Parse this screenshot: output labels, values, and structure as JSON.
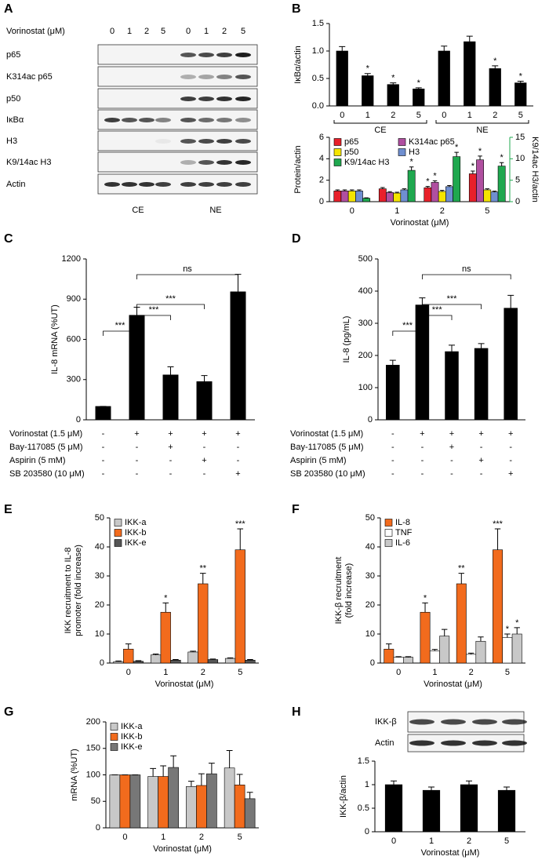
{
  "panel_labels": [
    "A",
    "B",
    "C",
    "D",
    "E",
    "F",
    "G",
    "H"
  ],
  "blot_a": {
    "treatment_label": "Vorinostat (μM)",
    "lanes": [
      "0",
      "1",
      "2",
      "5",
      "0",
      "1",
      "2",
      "5"
    ],
    "rows": [
      "p65",
      "K314ac p65",
      "p50",
      "IκBα",
      "H3",
      "K9/14ac H3",
      "Actin"
    ],
    "fractions": [
      "CE",
      "NE"
    ]
  },
  "blot_h": {
    "rows": [
      "IKK-β",
      "Actin"
    ]
  },
  "chart_data": [
    {
      "type": "bar",
      "ylabel": [
        "IκBα/actin"
      ],
      "categories": [
        "0",
        "1",
        "2",
        "5",
        "0",
        "1",
        "2",
        "5"
      ],
      "groups": [
        "CE",
        "NE"
      ],
      "values": [
        1.0,
        0.55,
        0.39,
        0.31,
        1.0,
        1.17,
        0.68,
        0.42
      ],
      "errors": [
        0.08,
        0.04,
        0.03,
        0.02,
        0.09,
        0.1,
        0.05,
        0.03
      ],
      "significance": [
        null,
        "*",
        "*",
        "*",
        null,
        null,
        "*",
        "*"
      ],
      "color": "#000000",
      "ylim": [
        0,
        1.5
      ],
      "yticks": [
        {
          "value": 0,
          "label": "0.0"
        },
        {
          "value": 0.5,
          "label": "0.5"
        },
        {
          "value": 1,
          "label": "1.0"
        },
        {
          "value": 1.5,
          "label": "1.5"
        }
      ]
    },
    {
      "type": "bar",
      "xlabel": "Vorinostat (μM)",
      "ylabel": [
        "Protein/actin"
      ],
      "y2label": [
        "K9/14ac H3/actin"
      ],
      "categories": [
        "0",
        "1",
        "2",
        "5"
      ],
      "series": [
        {
          "name": "p65",
          "color": "#e8202a",
          "values": [
            1,
            1.2,
            1.3,
            2.6
          ],
          "errors": [
            0.1,
            0.12,
            0.12,
            0.25
          ],
          "significance": [
            null,
            null,
            "*",
            "*"
          ]
        },
        {
          "name": "K314ac p65",
          "color": "#b04fa0",
          "values": [
            1,
            0.85,
            1.8,
            3.9
          ],
          "errors": [
            0.1,
            0.08,
            0.15,
            0.35
          ],
          "significance": [
            null,
            null,
            "*",
            "*"
          ]
        },
        {
          "name": "p50",
          "color": "#f5e500",
          "values": [
            1,
            0.8,
            0.95,
            1.1
          ],
          "errors": [
            0.1,
            0.08,
            0.1,
            0.1
          ]
        },
        {
          "name": "H3",
          "color": "#6f8fd0",
          "values": [
            1,
            1.1,
            1.4,
            0.9
          ],
          "errors": [
            0.1,
            0.1,
            0.1,
            0.08
          ]
        },
        {
          "name": "K9/14ac H3",
          "color": "#1fa84f",
          "axis": "y2",
          "values": [
            0.8,
            7.3,
            10.5,
            8.3
          ],
          "errors": [
            0.1,
            0.8,
            1.0,
            0.8
          ],
          "significance": [
            null,
            "*",
            "*",
            "*"
          ]
        }
      ],
      "ylim": [
        0,
        6
      ],
      "yticks": [
        0,
        2,
        4,
        6
      ],
      "y2lim": [
        0,
        15
      ],
      "y2ticks": [
        0,
        5,
        10,
        15
      ],
      "y2color": "#1fa84f",
      "legend": "upper left"
    },
    {
      "type": "bar",
      "ylabel": [
        "IL-8 mRNA (%UT)"
      ],
      "values": [
        100,
        780,
        335,
        285,
        955
      ],
      "errors": [
        0,
        60,
        60,
        45,
        130
      ],
      "color": "#000000",
      "ylim": [
        0,
        1200
      ],
      "yticks": [
        0,
        300,
        600,
        900,
        1200
      ],
      "comparisons": [
        "***",
        "***",
        "***",
        "ns"
      ],
      "conditions": [
        {
          "label": "Vorinostat (1.5 μM)",
          "marks": [
            "-",
            "+",
            "+",
            "+",
            "+"
          ]
        },
        {
          "label": "Bay-117085 (5 μM)",
          "marks": [
            "-",
            "-",
            "+",
            "-",
            "-"
          ]
        },
        {
          "label": "Aspirin (5 mM)",
          "marks": [
            "-",
            "-",
            "-",
            "+",
            "-"
          ]
        },
        {
          "label": "SB 203580 (10 μM)",
          "marks": [
            "-",
            "-",
            "-",
            "-",
            "+"
          ]
        }
      ]
    },
    {
      "type": "bar",
      "ylabel": [
        "IL-8 (pg/mL)"
      ],
      "values": [
        170,
        357,
        212,
        222,
        347
      ],
      "errors": [
        15,
        22,
        20,
        15,
        40
      ],
      "color": "#000000",
      "ylim": [
        0,
        500
      ],
      "yticks": [
        0,
        100,
        200,
        300,
        400,
        500
      ],
      "comparisons": [
        "***",
        "***",
        "***",
        "ns"
      ],
      "conditions": [
        {
          "label": "Vorinostat (1.5 μM)",
          "marks": [
            "-",
            "+",
            "+",
            "+",
            "+"
          ]
        },
        {
          "label": "Bay-117085 (5 μM)",
          "marks": [
            "-",
            "-",
            "+",
            "-",
            "-"
          ]
        },
        {
          "label": "Aspirin (5 mM)",
          "marks": [
            "-",
            "-",
            "-",
            "+",
            "-"
          ]
        },
        {
          "label": "SB 203580 (10 μM)",
          "marks": [
            "-",
            "-",
            "-",
            "-",
            "+"
          ]
        }
      ]
    },
    {
      "type": "bar",
      "xlabel": "Vorinostat (μM)",
      "ylabel": [
        "IKK recruitment to IL-8",
        "promoter (fold increase)"
      ],
      "categories": [
        "0",
        "1",
        "2",
        "5"
      ],
      "series": [
        {
          "name": "IKK-a",
          "color": "#c8c8c8",
          "values": [
            0.5,
            2.8,
            3.8,
            1.6
          ],
          "errors": [
            0.2,
            0.3,
            0.3,
            0.2
          ]
        },
        {
          "name": "IKK-b",
          "color": "#f26b1d",
          "values": [
            4.8,
            17.5,
            27.3,
            39
          ],
          "errors": [
            1.8,
            3.2,
            3.6,
            7.2
          ],
          "significance": [
            null,
            "*",
            "**",
            "***"
          ]
        },
        {
          "name": "IKK-e",
          "color": "#555555",
          "values": [
            0.6,
            1,
            1.2,
            1
          ],
          "errors": [
            0.2,
            0.2,
            0.2,
            0.2
          ]
        }
      ],
      "ylim": [
        0,
        50
      ],
      "yticks": [
        0,
        10,
        20,
        30,
        40,
        50
      ],
      "legend": "upper left"
    },
    {
      "type": "bar",
      "xlabel": "Vorinostat (μM)",
      "ylabel": [
        "IKK-β recruitment",
        "(fold increase)"
      ],
      "categories": [
        "0",
        "1",
        "2",
        "5"
      ],
      "series": [
        {
          "name": "IL-8",
          "color": "#f26b1d",
          "values": [
            4.8,
            17.5,
            27.3,
            39
          ],
          "errors": [
            1.8,
            3.2,
            3.6,
            7.2
          ],
          "significance": [
            null,
            "*",
            "**",
            "***"
          ]
        },
        {
          "name": "TNF",
          "color": "#ffffff",
          "values": [
            2,
            4.2,
            3,
            8.8
          ],
          "errors": [
            0.2,
            0.5,
            0.4,
            1.2
          ],
          "significance": [
            null,
            null,
            null,
            "*"
          ]
        },
        {
          "name": "IL-6",
          "color": "#c8c8c8",
          "values": [
            2,
            9.3,
            7.5,
            10
          ],
          "errors": [
            0.2,
            2.3,
            1.5,
            2.2
          ],
          "significance": [
            null,
            null,
            null,
            "*"
          ]
        }
      ],
      "ylim": [
        0,
        50
      ],
      "yticks": [
        0,
        10,
        20,
        30,
        40,
        50
      ],
      "legend": "upper left"
    },
    {
      "type": "bar",
      "xlabel": "Vorinostat (μM)",
      "ylabel": [
        "mRNA (%UT)"
      ],
      "categories": [
        "0",
        "1",
        "2",
        "5"
      ],
      "series": [
        {
          "name": "IKK-a",
          "color": "#c8c8c8",
          "values": [
            100,
            97,
            78,
            113
          ],
          "errors": [
            0,
            15,
            10,
            33
          ]
        },
        {
          "name": "IKK-b",
          "color": "#f26b1d",
          "values": [
            100,
            97,
            80,
            81
          ],
          "errors": [
            0,
            20,
            22,
            20
          ]
        },
        {
          "name": "IKK-e",
          "color": "#777777",
          "values": [
            100,
            114,
            102,
            55
          ],
          "errors": [
            0,
            22,
            20,
            12
          ]
        }
      ],
      "ylim": [
        0,
        200
      ],
      "yticks": [
        0,
        50,
        100,
        150,
        200
      ],
      "legend": "upper left"
    },
    {
      "type": "bar",
      "xlabel": "Vorinostat (μM)",
      "ylabel": [
        "IKK-β/actin"
      ],
      "categories": [
        "0",
        "1",
        "2",
        "5"
      ],
      "values": [
        1.0,
        0.88,
        1.0,
        0.88
      ],
      "errors": [
        0.08,
        0.07,
        0.08,
        0.07
      ],
      "color": "#000000",
      "ylim": [
        0,
        1.5
      ],
      "yticks": [
        0,
        0.5,
        1,
        1.5
      ]
    }
  ]
}
